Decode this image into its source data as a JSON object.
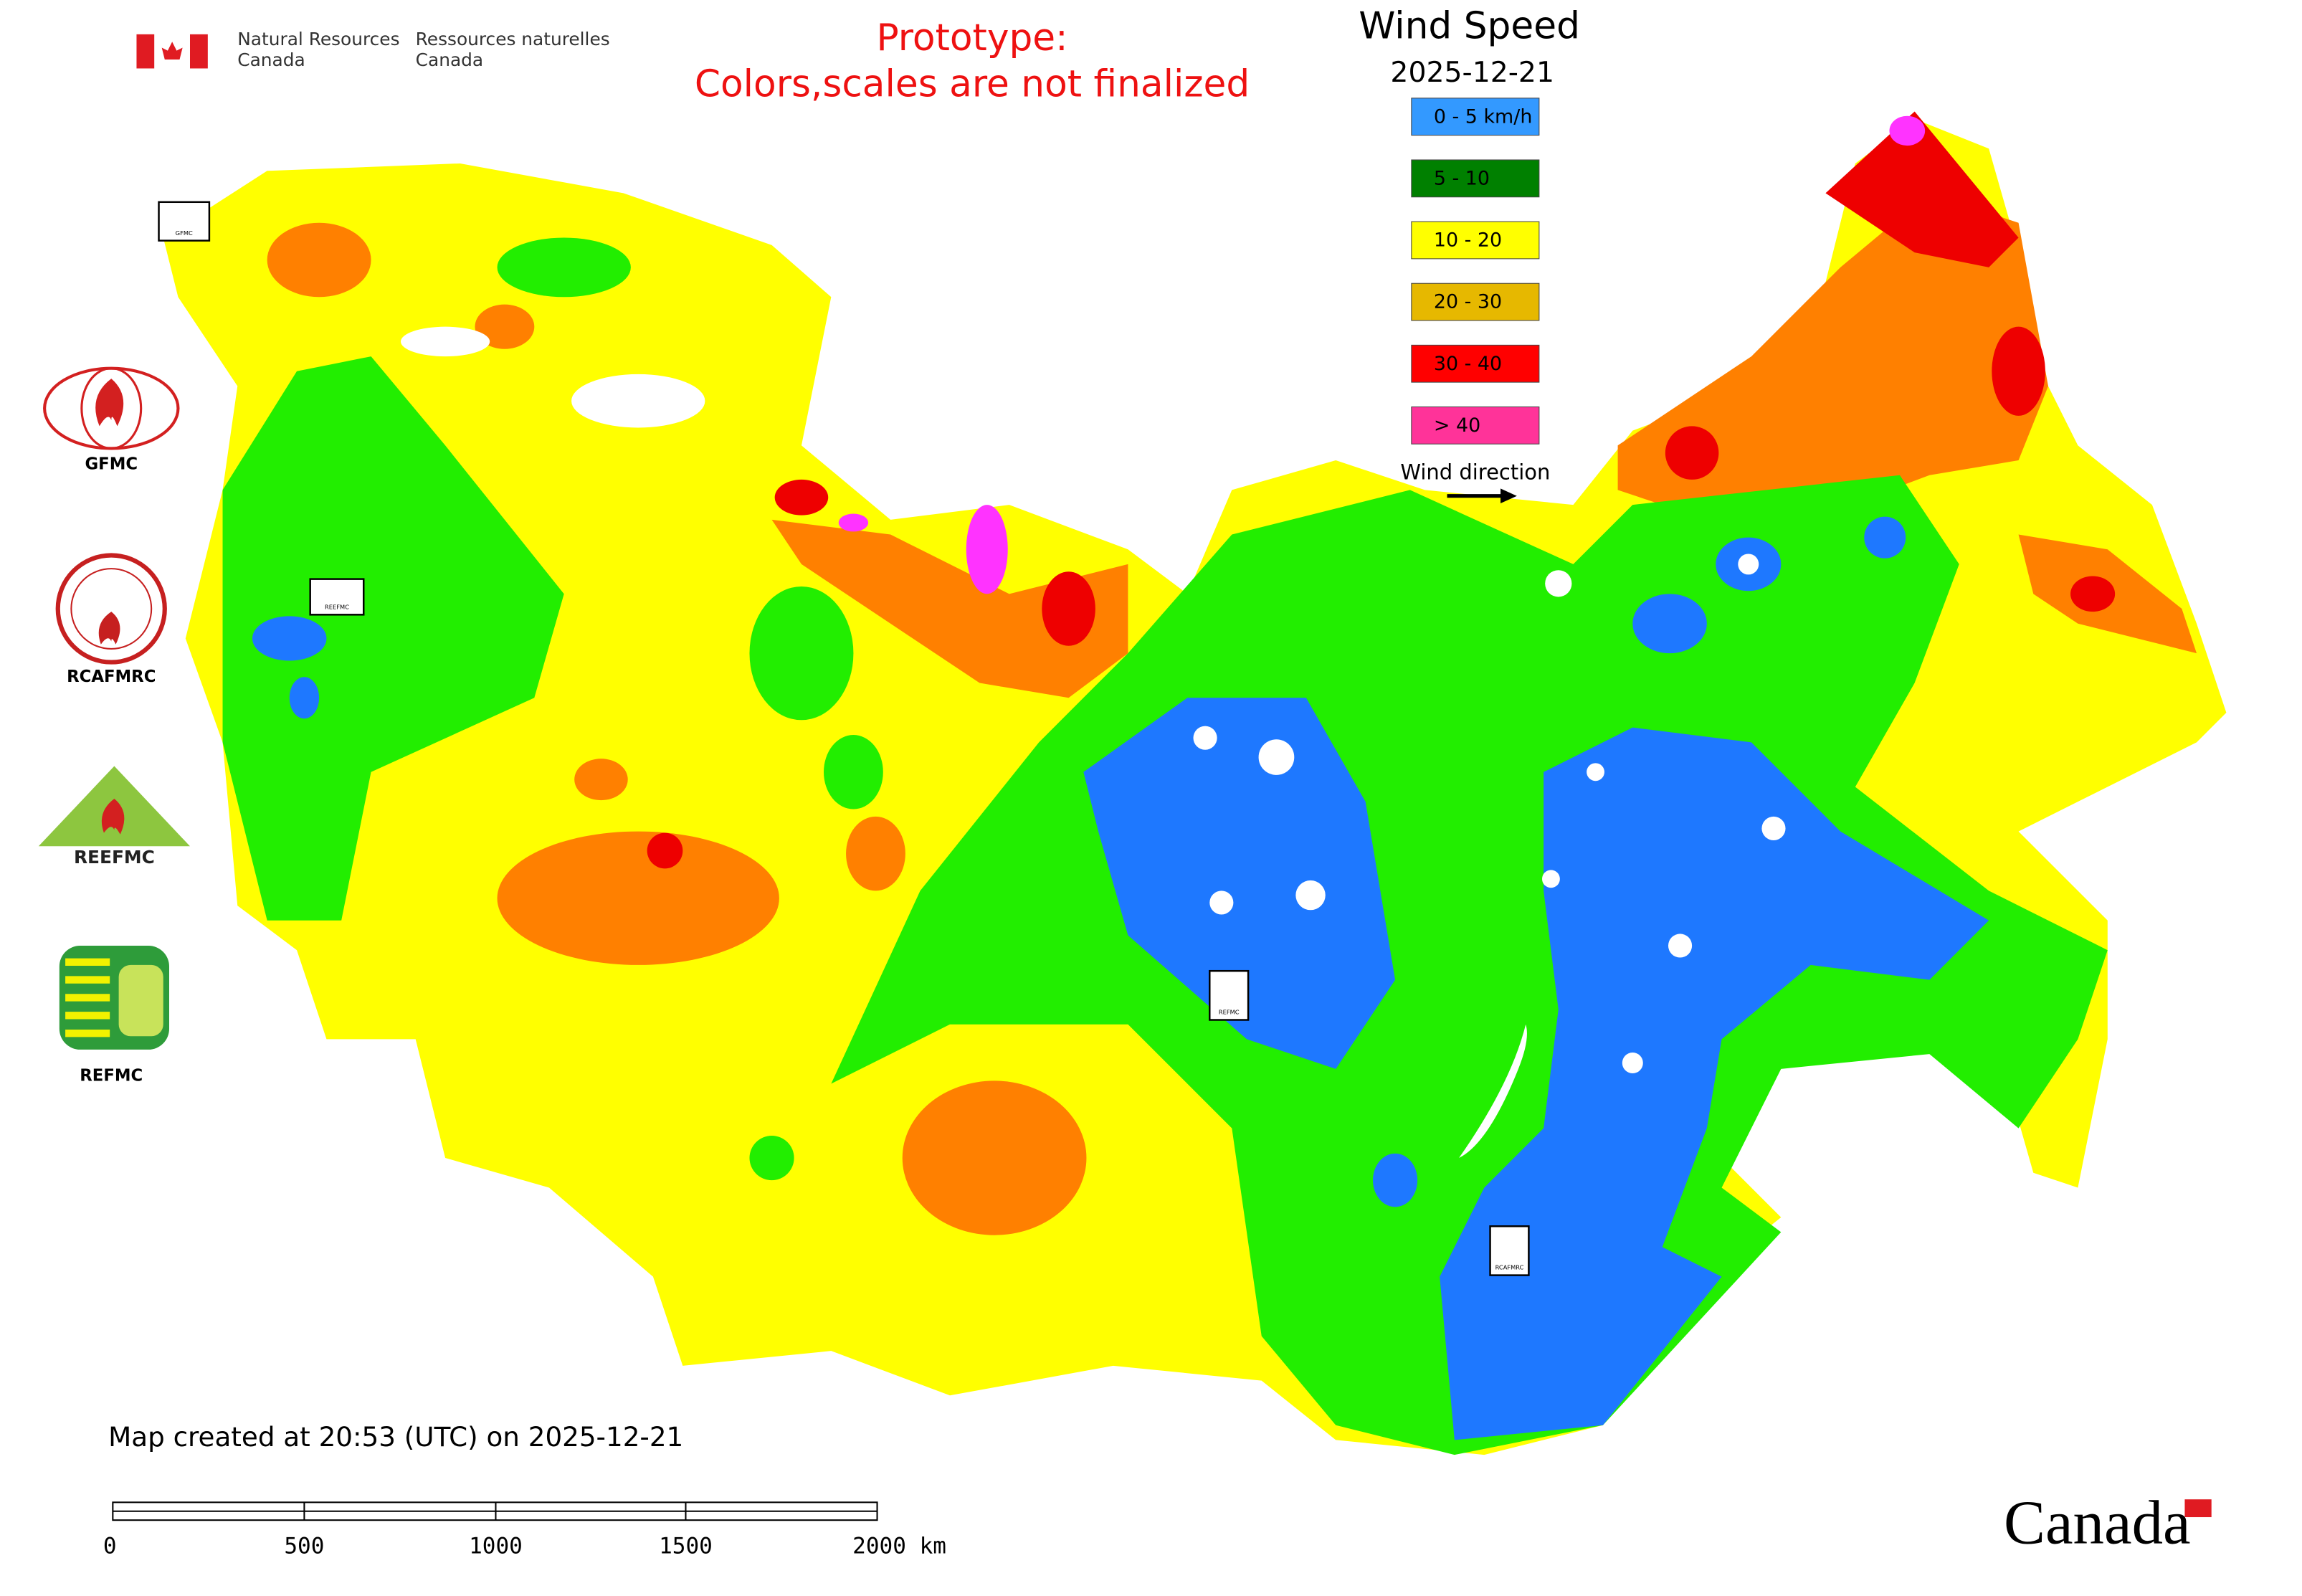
{
  "header": {
    "agency_en": [
      "Natural Resources",
      "Canada"
    ],
    "agency_fr": [
      "Ressources naturelles",
      "Canada"
    ]
  },
  "notice": [
    "Prototype:",
    "Colors,scales are not finalized"
  ],
  "legend": {
    "title": "Wind Speed",
    "date": "2025-12-21",
    "items": [
      {
        "label": "0 - 5 km/h",
        "color": "#3399ff"
      },
      {
        "label": "5 - 10",
        "color": "#008000"
      },
      {
        "label": "10 - 20",
        "color": "#ffff00"
      },
      {
        "label": "20 - 30",
        "color": "#e6b800"
      },
      {
        "label": "30 - 40",
        "color": "#ff0000"
      },
      {
        "label": "> 40",
        "color": "#ff3399"
      }
    ],
    "wind_direction": "Wind direction"
  },
  "map_colors": {
    "low": "#1e78ff",
    "green": "#22ee00",
    "yellow": "#ffff00",
    "orange": "#ff8000",
    "red": "#ee0000",
    "magenta": "#ff33ff"
  },
  "logos": [
    "GFMC",
    "RCAFMRC",
    "REEFMC",
    "REFMC"
  ],
  "markers": [
    "GFMC",
    "REEFMC",
    "REFMC",
    "RCAFMRC"
  ],
  "footer": {
    "created": "Map created at 20:53 (UTC) on 2025-12-21",
    "scale_labels": [
      "0",
      "500",
      "1000",
      "1500",
      "2000 km"
    ],
    "wordmark": "Canada"
  }
}
